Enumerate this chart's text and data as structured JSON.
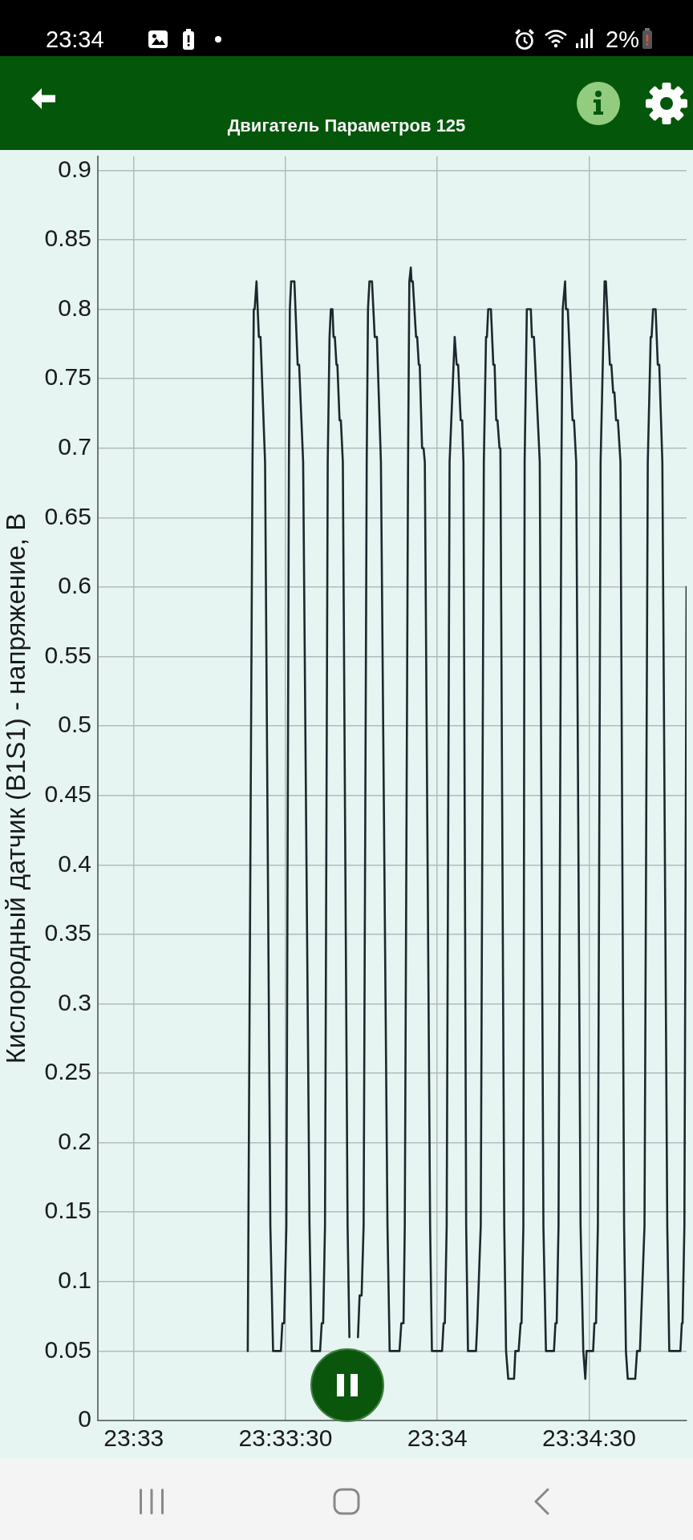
{
  "chart_data": {
    "type": "line",
    "subtitle": "Двигатель Параметров 125",
    "ylabel": "Кислородный датчик (B1S1) - напряжение, В",
    "x": [
      23.55626,
      23.55652,
      23.55659,
      23.55664,
      23.55674,
      23.55687,
      23.55696,
      23.55721,
      23.5575,
      23.55765,
      23.55808,
      23.55816,
      23.55826,
      23.55838,
      23.55852,
      23.55857,
      23.55864,
      23.55882,
      23.559,
      23.55908,
      23.5593,
      23.55965,
      23.55977,
      23.56023,
      23.56032,
      23.5604,
      23.5605,
      23.56065,
      23.56075,
      23.56082,
      23.56091,
      23.56097,
      23.56104,
      23.56113,
      23.56118,
      23.5613,
      23.56137,
      23.56148,
      23.56174,
      23.56184,
      23.56208,
      23.56231,
      23.5624,
      23.56251,
      23.56262,
      23.56279,
      23.56286,
      23.56294,
      23.56308,
      23.56323,
      23.56335,
      23.56357,
      23.56393,
      23.56405,
      23.56459,
      23.56469,
      23.56481,
      23.56488,
      23.56506,
      23.56513,
      23.56521,
      23.56525,
      23.56532,
      23.5655,
      23.56556,
      23.56565,
      23.5657,
      23.56583,
      23.56591,
      23.56598,
      23.56627,
      23.56637,
      23.56693,
      23.56701,
      23.56708,
      23.56718,
      23.56734,
      23.56762,
      23.56773,
      23.56781,
      23.56795,
      23.56803,
      23.5681,
      23.56825,
      23.56835,
      23.56879,
      23.56886,
      23.5689,
      23.56905,
      23.56922,
      23.56934,
      23.56939,
      23.56946,
      23.56961,
      23.56974,
      23.56981,
      23.5699,
      23.56997,
      23.57008,
      23.57013,
      23.57034,
      23.57044,
      23.57056,
      23.57088,
      23.57095,
      23.57113,
      23.57124,
      23.57129,
      23.57139,
      23.57146,
      23.57158,
      23.5718,
      23.57186,
      23.57197,
      23.57229,
      23.57249,
      23.57263,
      23.57307,
      23.57315,
      23.57322,
      23.57332,
      23.57348,
      23.57355,
      23.57368,
      23.57373,
      23.57383,
      23.57409,
      23.57417,
      23.57429,
      23.57453,
      23.57468,
      23.57479,
      23.57486,
      23.57522,
      23.57529,
      23.57538,
      23.57548,
      23.57563,
      23.57585,
      23.57592,
      23.57614,
      23.57622,
      23.57632,
      23.57639,
      23.57648,
      23.57658,
      23.57672,
      23.57692,
      23.57702,
      23.57712,
      23.57753,
      23.57763,
      23.57779,
      23.57804,
      23.57822,
      23.57838,
      23.57843,
      23.57851,
      23.57865,
      23.57877,
      23.57885,
      23.57902,
      23.57929,
      23.5794,
      23.58001,
      23.58009,
      23.58013,
      23.58023,
      23.58035
    ],
    "series": [
      {
        "color": "#1e272e",
        "values": [
          0.05,
          0.69,
          0.8,
          0.8,
          0.82,
          0.78,
          0.78,
          0.69,
          0.14,
          0.05,
          0.05,
          0.07,
          0.07,
          0.14,
          0.69,
          0.8,
          0.82,
          0.82,
          0.76,
          0.76,
          0.69,
          0.14,
          0.05,
          0.05,
          0.07,
          0.07,
          0.14,
          0.69,
          0.78,
          0.8,
          0.8,
          0.78,
          0.78,
          0.76,
          0.76,
          0.72,
          0.72,
          0.69,
          0.14,
          0.06,
          null,
          0.06,
          0.09,
          0.09,
          0.14,
          0.69,
          0.8,
          0.82,
          0.82,
          0.78,
          0.78,
          0.69,
          0.14,
          0.05,
          0.05,
          0.07,
          0.07,
          0.14,
          0.69,
          0.82,
          0.83,
          0.82,
          0.82,
          0.78,
          0.78,
          0.76,
          0.76,
          0.7,
          0.7,
          0.69,
          0.14,
          0.05,
          0.05,
          0.07,
          0.07,
          0.14,
          0.69,
          0.78,
          0.76,
          0.76,
          0.72,
          0.72,
          0.69,
          0.14,
          0.05,
          0.05,
          0.07,
          0.07,
          0.14,
          0.69,
          0.78,
          0.78,
          0.8,
          0.8,
          0.76,
          0.76,
          0.72,
          0.72,
          0.7,
          0.7,
          0.14,
          0.05,
          0.03,
          0.03,
          0.05,
          0.05,
          0.07,
          0.07,
          0.14,
          0.69,
          0.8,
          0.8,
          0.78,
          0.78,
          0.69,
          0.14,
          0.05,
          0.05,
          0.07,
          0.07,
          0.14,
          0.69,
          0.8,
          0.82,
          0.8,
          0.8,
          0.72,
          0.72,
          0.69,
          0.14,
          0.05,
          0.03,
          0.05,
          0.05,
          0.07,
          0.07,
          0.14,
          0.69,
          0.82,
          0.82,
          0.76,
          0.76,
          0.74,
          0.74,
          0.72,
          0.72,
          0.69,
          0.14,
          0.05,
          0.03,
          0.03,
          0.05,
          0.05,
          0.14,
          0.69,
          0.78,
          0.78,
          0.8,
          0.8,
          0.76,
          0.76,
          0.69,
          0.14,
          0.05,
          0.05,
          0.07,
          0.07,
          0.14,
          0.6
        ]
      }
    ],
    "xlim": [
      23.54803,
      23.58035
    ],
    "xticks": [
      {
        "value": 23.55,
        "label": "23:33"
      },
      {
        "value": 23.558333,
        "label": "23:33:30"
      },
      {
        "value": 23.566667,
        "label": "23:34"
      },
      {
        "value": 23.575,
        "label": "23:34:30"
      }
    ],
    "ylim": [
      0,
      0.91
    ],
    "yticks": [
      0,
      0.05,
      0.1,
      0.15,
      0.2,
      0.25,
      0.3,
      0.35,
      0.4,
      0.45,
      0.5,
      0.55,
      0.6,
      0.65,
      0.7,
      0.75,
      0.8,
      0.85,
      0.9
    ],
    "grid": true,
    "marker": "none",
    "line_style": "solid",
    "annotations": [
      "23:34",
      "2%"
    ]
  }
}
